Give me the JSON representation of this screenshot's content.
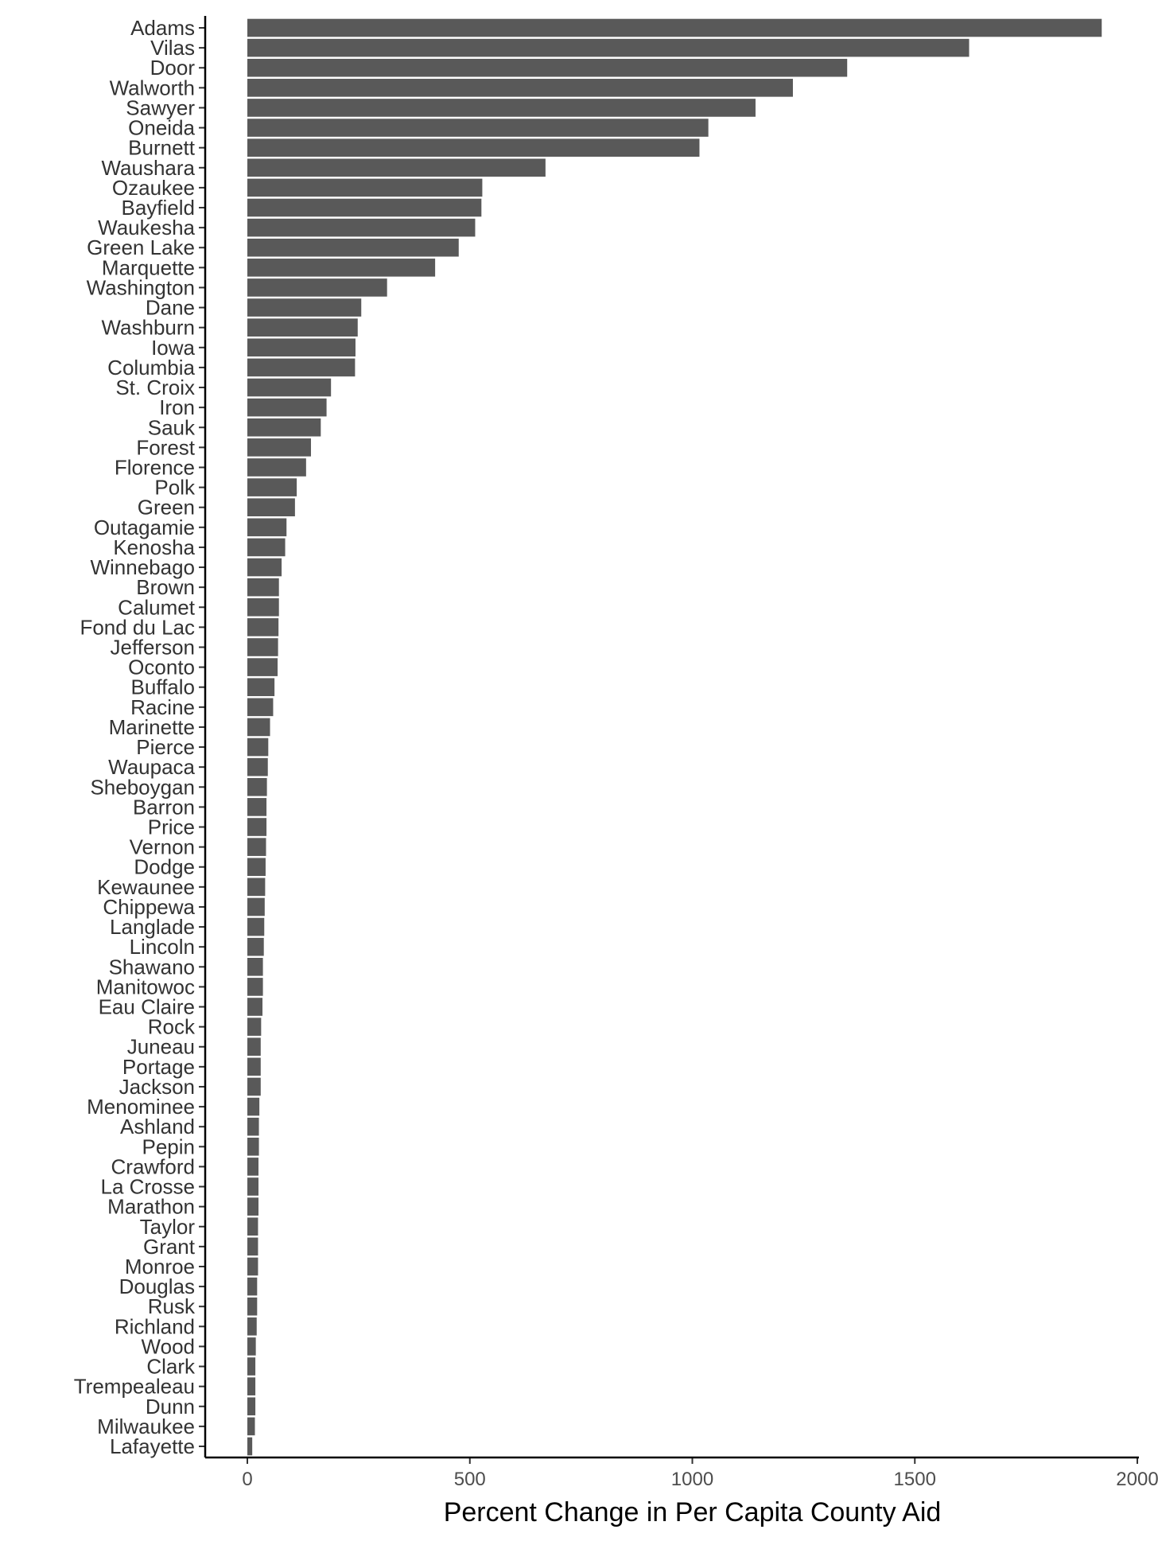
{
  "chart_data": {
    "type": "bar",
    "orientation": "horizontal",
    "xlabel": "Percent Change in Per Capita County Aid",
    "ylabel": "",
    "xlim": [
      0,
      2000
    ],
    "xticks": [
      0,
      500,
      1000,
      1500,
      2000
    ],
    "grid": false,
    "bar_color": "#595959",
    "categories": [
      "Adams",
      "Vilas",
      "Door",
      "Walworth",
      "Sawyer",
      "Oneida",
      "Burnett",
      "Waushara",
      "Ozaukee",
      "Bayfield",
      "Waukesha",
      "Green Lake",
      "Marquette",
      "Washington",
      "Dane",
      "Washburn",
      "Iowa",
      "Columbia",
      "St. Croix",
      "Iron",
      "Sauk",
      "Forest",
      "Florence",
      "Polk",
      "Green",
      "Outagamie",
      "Kenosha",
      "Winnebago",
      "Brown",
      "Calumet",
      "Fond du Lac",
      "Jefferson",
      "Oconto",
      "Buffalo",
      "Racine",
      "Marinette",
      "Pierce",
      "Waupaca",
      "Sheboygan",
      "Barron",
      "Price",
      "Vernon",
      "Dodge",
      "Kewaunee",
      "Chippewa",
      "Langlade",
      "Lincoln",
      "Shawano",
      "Manitowoc",
      "Eau Claire",
      "Rock",
      "Juneau",
      "Portage",
      "Jackson",
      "Menominee",
      "Ashland",
      "Pepin",
      "Crawford",
      "La Crosse",
      "Marathon",
      "Taylor",
      "Grant",
      "Monroe",
      "Douglas",
      "Rusk",
      "Richland",
      "Wood",
      "Clark",
      "Trempealeau",
      "Dunn",
      "Milwaukee",
      "Lafayette"
    ],
    "values": [
      1920,
      1622,
      1348,
      1226,
      1142,
      1036,
      1016,
      670,
      528,
      526,
      512,
      475,
      422,
      314,
      256,
      248,
      243,
      242,
      188,
      178,
      165,
      143,
      132,
      111,
      107,
      88,
      85,
      77,
      71,
      71,
      70,
      69,
      68,
      61,
      58,
      51,
      47,
      46,
      44,
      43,
      43,
      42,
      41,
      40,
      39,
      38,
      37,
      35,
      35,
      34,
      31,
      30,
      30,
      30,
      27,
      26,
      26,
      25,
      25,
      25,
      24,
      24,
      24,
      22,
      22,
      21,
      19,
      18,
      18,
      18,
      17,
      11
    ]
  }
}
